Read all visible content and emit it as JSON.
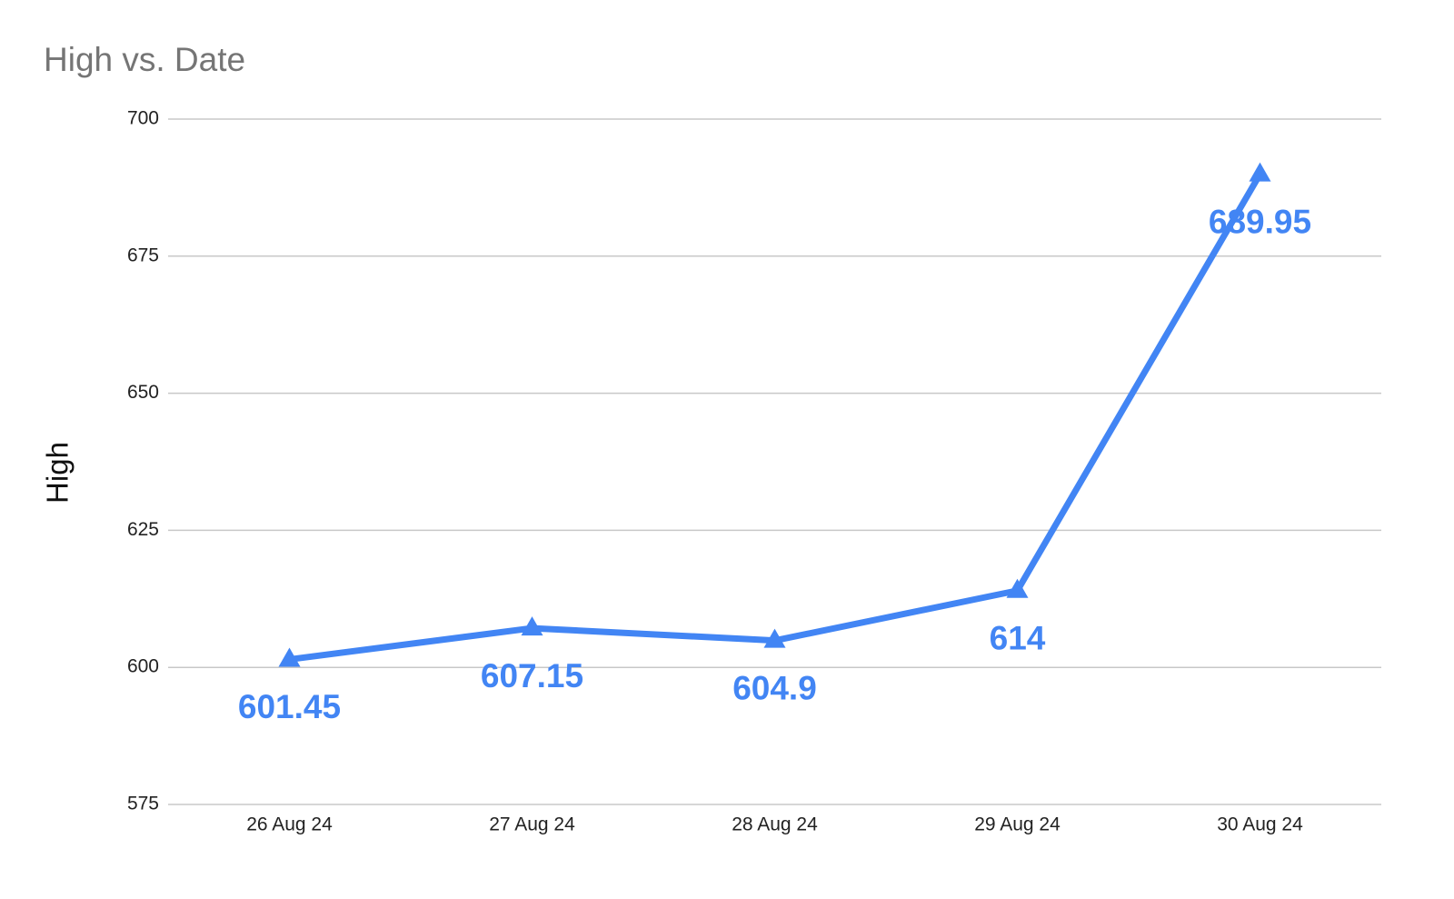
{
  "chart_data": {
    "type": "line",
    "title": "High vs. Date",
    "y_label": "High",
    "categories": [
      "26 Aug 24",
      "27 Aug 24",
      "28 Aug 24",
      "29 Aug 24",
      "30 Aug 24"
    ],
    "series": [
      {
        "name": "High",
        "color": "#4285f4",
        "values": [
          601.45,
          607.15,
          604.9,
          614,
          689.95
        ]
      }
    ],
    "ylim": [
      575,
      700
    ],
    "yticks": [
      575,
      600,
      625,
      650,
      675,
      700
    ],
    "grid": true
  }
}
